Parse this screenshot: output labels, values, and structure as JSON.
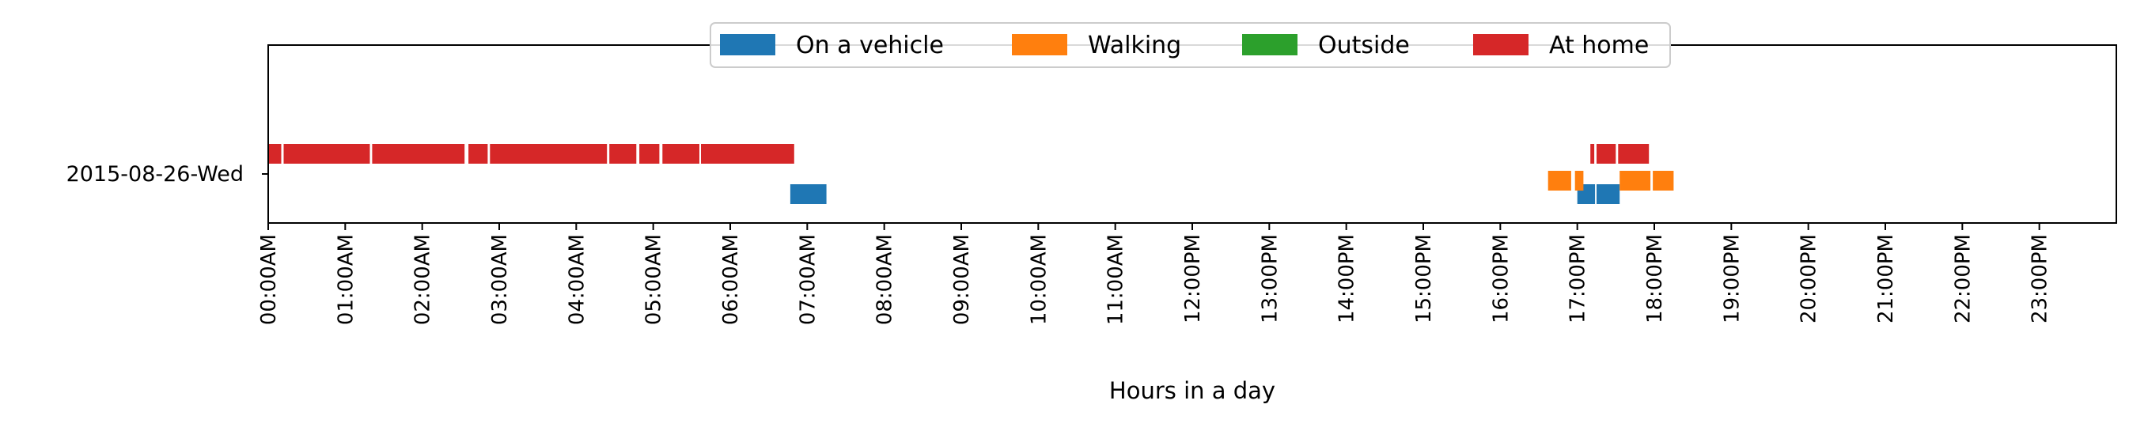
{
  "chart_data": {
    "type": "timeline",
    "xlabel": "Hours in a day",
    "xlim": [
      0,
      24
    ],
    "x_ticks": [
      "00:00AM",
      "01:00AM",
      "02:00AM",
      "03:00AM",
      "04:00AM",
      "05:00AM",
      "06:00AM",
      "07:00AM",
      "08:00AM",
      "09:00AM",
      "10:00AM",
      "11:00AM",
      "12:00PM",
      "13:00PM",
      "14:00PM",
      "15:00PM",
      "16:00PM",
      "17:00PM",
      "18:00PM",
      "19:00PM",
      "20:00PM",
      "21:00PM",
      "22:00PM",
      "23:00PM"
    ],
    "y_categories": [
      "2015-08-26-Wed"
    ],
    "legend_position": "upper center",
    "grid": false,
    "series": [
      {
        "name": "On a vehicle",
        "color": "#1f77b4",
        "lane": 0,
        "intervals": [
          [
            6.78,
            7.25
          ],
          [
            17.0,
            17.23
          ],
          [
            17.25,
            17.55
          ]
        ]
      },
      {
        "name": "Walking",
        "color": "#ff7f0e",
        "lane": 1,
        "intervals": [
          [
            16.62,
            16.92
          ],
          [
            16.97,
            17.08
          ],
          [
            17.55,
            17.95
          ],
          [
            17.98,
            18.25
          ]
        ]
      },
      {
        "name": "Outside",
        "color": "#2ca02c",
        "lane": 2,
        "intervals": []
      },
      {
        "name": "At home",
        "color": "#d62728",
        "lane": 3,
        "intervals": [
          [
            0.0,
            0.17
          ],
          [
            0.2,
            1.32
          ],
          [
            1.35,
            2.55
          ],
          [
            2.6,
            2.85
          ],
          [
            2.88,
            4.4
          ],
          [
            4.43,
            4.78
          ],
          [
            4.82,
            5.08
          ],
          [
            5.12,
            5.6
          ],
          [
            5.62,
            6.83
          ],
          [
            17.17,
            17.22
          ],
          [
            17.25,
            17.5
          ],
          [
            17.53,
            17.93
          ]
        ]
      }
    ]
  }
}
